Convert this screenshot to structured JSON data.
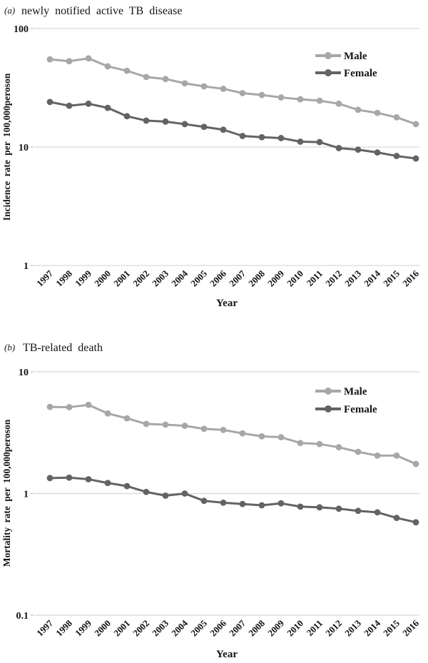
{
  "page": {
    "background": "#ffffff"
  },
  "colors": {
    "male": "#a7a7a7",
    "female": "#636363",
    "gridline": "#d9d9d9",
    "tick": "#bfbfbf",
    "text": "#141414"
  },
  "chart_data": [
    {
      "id": "incidence",
      "type": "line",
      "panel_label": "(a)",
      "title": "newly notified active TB disease",
      "ylabel": "Incidence rate per 100,000peroson",
      "xlabel": "Year",
      "yscale": "log",
      "ylim": [
        1,
        100
      ],
      "yticks": [
        100,
        10,
        1
      ],
      "ytick_labels": [
        "100",
        "10",
        "1"
      ],
      "grid": "horizontal",
      "legend_position": "top-right",
      "categories": [
        "1997",
        "1998",
        "1999",
        "2000",
        "2001",
        "2002",
        "2003",
        "2004",
        "2005",
        "2006",
        "2007",
        "2008",
        "2009",
        "2010",
        "2011",
        "2012",
        "2013",
        "2014",
        "2015",
        "2016"
      ],
      "series": [
        {
          "name": "Male",
          "color_key": "male",
          "values": [
            55,
            53,
            56,
            48,
            44,
            39,
            37.5,
            34.5,
            32.5,
            31,
            28.5,
            27.5,
            26.2,
            25.3,
            24.6,
            23.2,
            20.6,
            19.4,
            17.8,
            15.6
          ]
        },
        {
          "name": "Female",
          "color_key": "female",
          "values": [
            24.0,
            22.3,
            23.2,
            21.4,
            18.2,
            16.7,
            16.4,
            15.6,
            14.8,
            14.0,
            12.4,
            12.1,
            11.9,
            11.1,
            11.0,
            9.8,
            9.5,
            9.0,
            8.4,
            8.0
          ]
        }
      ]
    },
    {
      "id": "mortality",
      "type": "line",
      "panel_label": "(b)",
      "title": "TB-related death",
      "ylabel": "Mortality rate per 100,000peroson",
      "xlabel": "Year",
      "yscale": "log",
      "ylim": [
        0.1,
        10
      ],
      "yticks": [
        10,
        1,
        0.1
      ],
      "ytick_labels": [
        "10",
        "1",
        "0.1"
      ],
      "grid": "horizontal",
      "legend_position": "top-right",
      "categories": [
        "1997",
        "1998",
        "1999",
        "2000",
        "2001",
        "2002",
        "2003",
        "2004",
        "2005",
        "2006",
        "2007",
        "2008",
        "2009",
        "2010",
        "2011",
        "2012",
        "2013",
        "2014",
        "2015",
        "2016"
      ],
      "series": [
        {
          "name": "Male",
          "color_key": "male",
          "values": [
            5.15,
            5.12,
            5.35,
            4.55,
            4.15,
            3.73,
            3.68,
            3.6,
            3.4,
            3.33,
            3.12,
            2.95,
            2.9,
            2.6,
            2.55,
            2.4,
            2.2,
            2.05,
            2.05,
            1.75
          ]
        },
        {
          "name": "Female",
          "color_key": "female",
          "values": [
            1.34,
            1.35,
            1.31,
            1.22,
            1.15,
            1.03,
            0.96,
            1.0,
            0.87,
            0.84,
            0.82,
            0.8,
            0.83,
            0.78,
            0.77,
            0.75,
            0.72,
            0.7,
            0.63,
            0.58
          ]
        }
      ]
    }
  ]
}
